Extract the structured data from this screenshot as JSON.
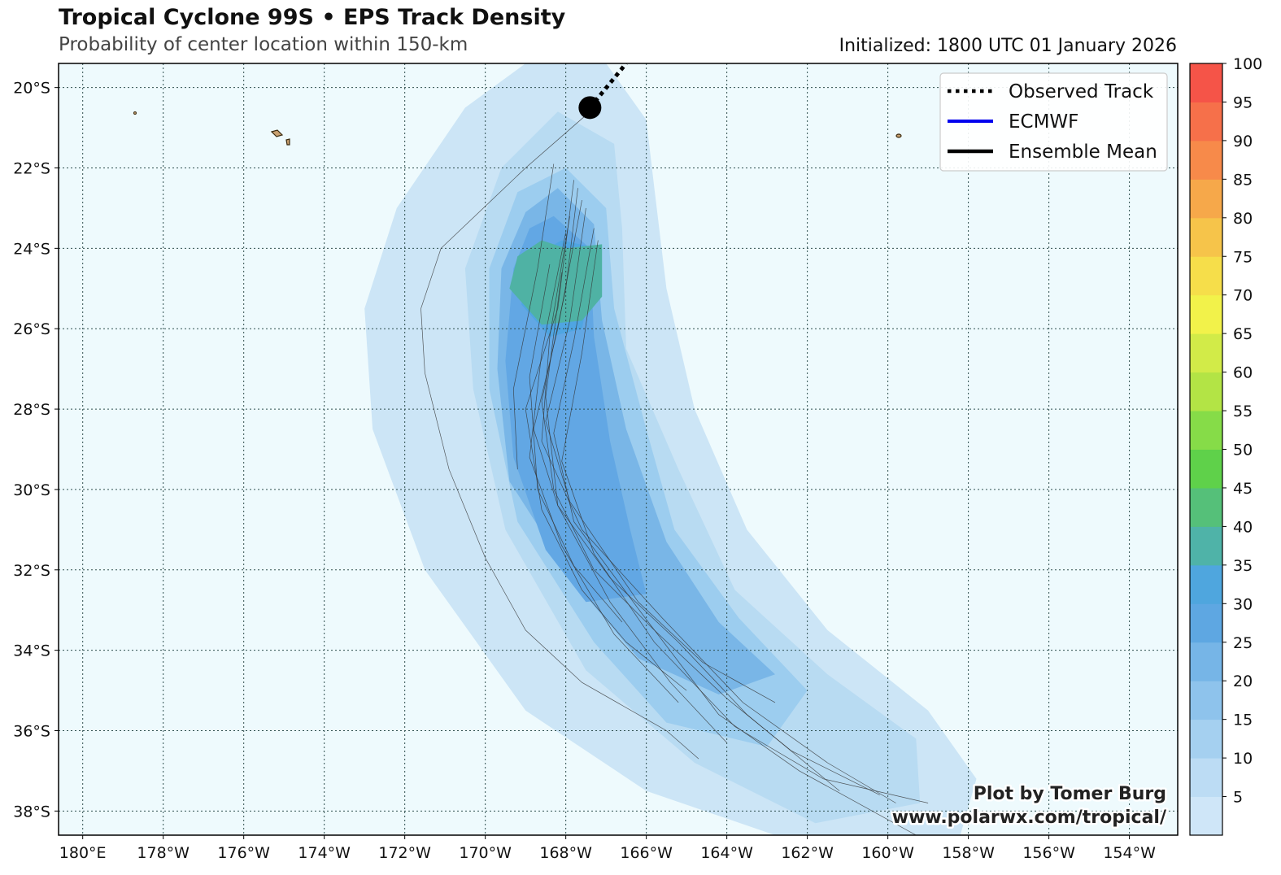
{
  "header": {
    "title": "Tropical Cyclone 99S • EPS Track Density",
    "subtitle": "Probability of center location within 150-km",
    "initialized": "Initialized: 1800 UTC 01 January 2026"
  },
  "map": {
    "lon_range": [
      -180.6,
      -152.8
    ],
    "lat_range": [
      -38.6,
      -19.4
    ],
    "lon_ticks": [
      "180°E",
      "178°W",
      "176°W",
      "174°W",
      "172°W",
      "170°W",
      "168°W",
      "166°W",
      "164°W",
      "162°W",
      "160°W",
      "158°W",
      "156°W",
      "154°W"
    ],
    "lon_values": [
      -180,
      -178,
      -176,
      -174,
      -172,
      -170,
      -168,
      -166,
      -164,
      -162,
      -160,
      -158,
      -156,
      -154
    ],
    "lat_ticks": [
      "20°S",
      "22°S",
      "24°S",
      "26°S",
      "28°S",
      "30°S",
      "32°S",
      "34°S",
      "36°S",
      "38°S"
    ],
    "lat_values": [
      -20,
      -22,
      -24,
      -26,
      -28,
      -30,
      -32,
      -34,
      -36,
      -38
    ],
    "ocean_color": "#eefafd",
    "grid_style": "dotted",
    "storm_position": {
      "lon": -167.4,
      "lat": -20.5
    },
    "observed_track": [
      [
        -167.4,
        -20.5
      ],
      [
        -166.5,
        -19.4
      ]
    ],
    "density_layers": [
      {
        "level": 5,
        "color": "#cce5f6",
        "path": [
          [
            -167.0,
            -19.4
          ],
          [
            -166.0,
            -20.8
          ],
          [
            -165.8,
            -22.5
          ],
          [
            -165.5,
            -25.0
          ],
          [
            -164.8,
            -28.0
          ],
          [
            -163.5,
            -31.0
          ],
          [
            -161.5,
            -33.5
          ],
          [
            -159.0,
            -35.5
          ],
          [
            -157.8,
            -37.2
          ],
          [
            -158.2,
            -38.6
          ],
          [
            -162.8,
            -38.6
          ],
          [
            -166.0,
            -37.5
          ],
          [
            -169.0,
            -35.5
          ],
          [
            -171.5,
            -32.0
          ],
          [
            -172.8,
            -28.5
          ],
          [
            -173.0,
            -25.5
          ],
          [
            -172.2,
            -23.0
          ],
          [
            -170.5,
            -20.5
          ],
          [
            -169.0,
            -19.4
          ]
        ]
      },
      {
        "level": 10,
        "color": "#b8dbf2",
        "path": [
          [
            -168.2,
            -20.6
          ],
          [
            -166.8,
            -21.4
          ],
          [
            -166.6,
            -23.5
          ],
          [
            -166.5,
            -26.5
          ],
          [
            -165.2,
            -29.5
          ],
          [
            -163.8,
            -32.5
          ],
          [
            -161.5,
            -34.6
          ],
          [
            -159.3,
            -36.2
          ],
          [
            -159.2,
            -37.8
          ],
          [
            -161.8,
            -38.3
          ],
          [
            -164.8,
            -36.8
          ],
          [
            -167.5,
            -34.5
          ],
          [
            -169.5,
            -31.0
          ],
          [
            -170.3,
            -27.5
          ],
          [
            -170.5,
            -24.5
          ],
          [
            -169.6,
            -22.0
          ]
        ]
      },
      {
        "level": 15,
        "color": "#9ccdef",
        "path": [
          [
            -168.0,
            -22.0
          ],
          [
            -167.0,
            -23.0
          ],
          [
            -166.8,
            -25.5
          ],
          [
            -166.0,
            -28.5
          ],
          [
            -165.3,
            -31.0
          ],
          [
            -163.7,
            -33.2
          ],
          [
            -162.0,
            -35.0
          ],
          [
            -163.0,
            -36.4
          ],
          [
            -165.5,
            -35.8
          ],
          [
            -167.3,
            -33.8
          ],
          [
            -169.2,
            -30.8
          ],
          [
            -169.9,
            -27.5
          ],
          [
            -169.9,
            -24.5
          ],
          [
            -169.2,
            -22.6
          ]
        ]
      },
      {
        "level": 20,
        "color": "#79b6e7",
        "path": [
          [
            -168.2,
            -22.5
          ],
          [
            -167.3,
            -23.4
          ],
          [
            -167.1,
            -25.8
          ],
          [
            -166.5,
            -28.5
          ],
          [
            -165.5,
            -31.3
          ],
          [
            -164.2,
            -33.3
          ],
          [
            -162.8,
            -34.6
          ],
          [
            -164.2,
            -35.1
          ],
          [
            -166.2,
            -34.2
          ],
          [
            -167.8,
            -32.3
          ],
          [
            -169.4,
            -29.8
          ],
          [
            -169.7,
            -27.0
          ],
          [
            -169.6,
            -24.5
          ],
          [
            -169.0,
            -23.1
          ]
        ]
      },
      {
        "level": 25,
        "color": "#62a7e4",
        "path": [
          [
            -168.3,
            -23.2
          ],
          [
            -167.4,
            -24.0
          ],
          [
            -167.3,
            -26.2
          ],
          [
            -166.9,
            -28.8
          ],
          [
            -166.4,
            -31.0
          ],
          [
            -166.0,
            -32.6
          ],
          [
            -167.5,
            -32.8
          ],
          [
            -168.5,
            -31.5
          ],
          [
            -169.3,
            -29.2
          ],
          [
            -169.5,
            -26.8
          ],
          [
            -169.3,
            -24.5
          ],
          [
            -168.9,
            -23.5
          ]
        ]
      },
      {
        "level": 30,
        "color": "#4fa5e2",
        "path": [
          [
            -168.1,
            -23.8
          ],
          [
            -167.2,
            -24.0
          ],
          [
            -167.6,
            -26.0
          ],
          [
            -168.4,
            -26.2
          ],
          [
            -169.1,
            -25.4
          ],
          [
            -169.0,
            -24.3
          ]
        ]
      },
      {
        "level": 35,
        "color": "#4fb2a4",
        "path": [
          [
            -168.0,
            -24.0
          ],
          [
            -167.1,
            -23.9
          ],
          [
            -167.1,
            -25.2
          ],
          [
            -167.6,
            -25.8
          ],
          [
            -168.6,
            -25.9
          ],
          [
            -169.4,
            -25.0
          ],
          [
            -169.2,
            -24.2
          ],
          [
            -168.6,
            -23.8
          ]
        ]
      }
    ],
    "ensemble_tracks": [
      [
        [
          -167.4,
          -20.6
        ],
        [
          -169.0,
          -22.0
        ],
        [
          -171.1,
          -24.0
        ],
        [
          -171.6,
          -25.5
        ],
        [
          -171.5,
          -27.1
        ],
        [
          -170.9,
          -29.5
        ],
        [
          -170.0,
          -31.7
        ],
        [
          -169.0,
          -33.5
        ],
        [
          -167.6,
          -34.8
        ],
        [
          -165.5,
          -36.0
        ],
        [
          -164.7,
          -36.7
        ]
      ],
      [
        [
          -168.3,
          -21.9
        ],
        [
          -168.7,
          -24.5
        ],
        [
          -169.3,
          -27.5
        ],
        [
          -169.2,
          -29.5
        ]
      ],
      [
        [
          -167.8,
          -22.3
        ],
        [
          -168.2,
          -25.5
        ],
        [
          -169.0,
          -28.0
        ],
        [
          -168.6,
          -30.5
        ],
        [
          -167.6,
          -32.5
        ],
        [
          -166.5,
          -33.8
        ],
        [
          -165.0,
          -35.0
        ]
      ],
      [
        [
          -167.7,
          -22.5
        ],
        [
          -168.0,
          -25.0
        ],
        [
          -168.6,
          -27.8
        ],
        [
          -168.3,
          -30.0
        ],
        [
          -167.3,
          -32.0
        ],
        [
          -165.8,
          -33.5
        ],
        [
          -164.0,
          -35.2
        ],
        [
          -162.4,
          -36.5
        ],
        [
          -160.2,
          -37.6
        ]
      ],
      [
        [
          -167.6,
          -22.8
        ],
        [
          -168.2,
          -26.0
        ],
        [
          -168.8,
          -28.5
        ],
        [
          -168.2,
          -30.4
        ],
        [
          -166.9,
          -32.2
        ],
        [
          -165.2,
          -33.8
        ],
        [
          -163.5,
          -35.6
        ],
        [
          -161.2,
          -37.5
        ]
      ],
      [
        [
          -167.5,
          -23.0
        ],
        [
          -167.9,
          -25.8
        ],
        [
          -168.5,
          -28.3
        ],
        [
          -167.9,
          -30.3
        ],
        [
          -166.2,
          -32.8
        ],
        [
          -164.6,
          -34.3
        ],
        [
          -162.8,
          -35.3
        ]
      ],
      [
        [
          -167.9,
          -23.2
        ],
        [
          -168.4,
          -26.2
        ],
        [
          -168.6,
          -28.8
        ],
        [
          -167.6,
          -31.0
        ],
        [
          -165.6,
          -33.2
        ],
        [
          -163.6,
          -35.3
        ],
        [
          -161.5,
          -36.8
        ],
        [
          -159.8,
          -37.8
        ]
      ],
      [
        [
          -167.3,
          -23.5
        ],
        [
          -167.8,
          -26.3
        ],
        [
          -168.3,
          -28.6
        ],
        [
          -167.8,
          -30.8
        ],
        [
          -166.1,
          -33.1
        ],
        [
          -164.2,
          -35.6
        ],
        [
          -162.2,
          -37.0
        ],
        [
          -159.3,
          -38.6
        ]
      ],
      [
        [
          -168.0,
          -23.6
        ],
        [
          -168.6,
          -26.6
        ],
        [
          -168.9,
          -29.2
        ],
        [
          -168.1,
          -31.4
        ],
        [
          -166.8,
          -33.6
        ],
        [
          -165.2,
          -35.3
        ]
      ],
      [
        [
          -167.2,
          -23.8
        ],
        [
          -167.6,
          -26.6
        ],
        [
          -168.1,
          -29.3
        ],
        [
          -167.3,
          -31.6
        ],
        [
          -165.8,
          -33.8
        ],
        [
          -163.8,
          -35.9
        ],
        [
          -161.6,
          -37.2
        ],
        [
          -159.0,
          -37.8
        ]
      ],
      [
        [
          -168.4,
          -24.4
        ],
        [
          -168.9,
          -27.2
        ],
        [
          -168.7,
          -30.0
        ],
        [
          -167.8,
          -31.9
        ],
        [
          -166.6,
          -33.3
        ]
      ],
      [
        [
          -168.1,
          -24.6
        ],
        [
          -168.5,
          -27.7
        ],
        [
          -168.2,
          -30.4
        ],
        [
          -166.9,
          -32.8
        ],
        [
          -165.4,
          -34.8
        ],
        [
          -164.0,
          -36.3
        ]
      ]
    ]
  },
  "colorbar": {
    "ticks": [
      "5",
      "10",
      "15",
      "20",
      "25",
      "30",
      "35",
      "40",
      "45",
      "50",
      "55",
      "60",
      "65",
      "70",
      "75",
      "80",
      "85",
      "90",
      "95",
      "100"
    ],
    "colors": [
      "#cfe6f8",
      "#bcdcf4",
      "#a5d0f0",
      "#8ec3ec",
      "#76b5e7",
      "#5ea7e2",
      "#4fa6de",
      "#4fb3a8",
      "#55c079",
      "#5fd14a",
      "#86dc48",
      "#b3e445",
      "#d2eb48",
      "#f2f24a",
      "#f6de4a",
      "#f6c44a",
      "#f6a84a",
      "#f78a4a",
      "#f6704a",
      "#f55448"
    ]
  },
  "legend": {
    "items": [
      {
        "label": "Observed Track",
        "style": "dotted",
        "color": "#000000"
      },
      {
        "label": "ECMWF",
        "style": "solid",
        "color": "#0000ee"
      },
      {
        "label": "Ensemble Mean",
        "style": "solid",
        "color": "#000000"
      }
    ]
  },
  "credit": {
    "line1": "Plot by Tomer Burg",
    "line2": "www.polarwx.com/tropical/"
  }
}
